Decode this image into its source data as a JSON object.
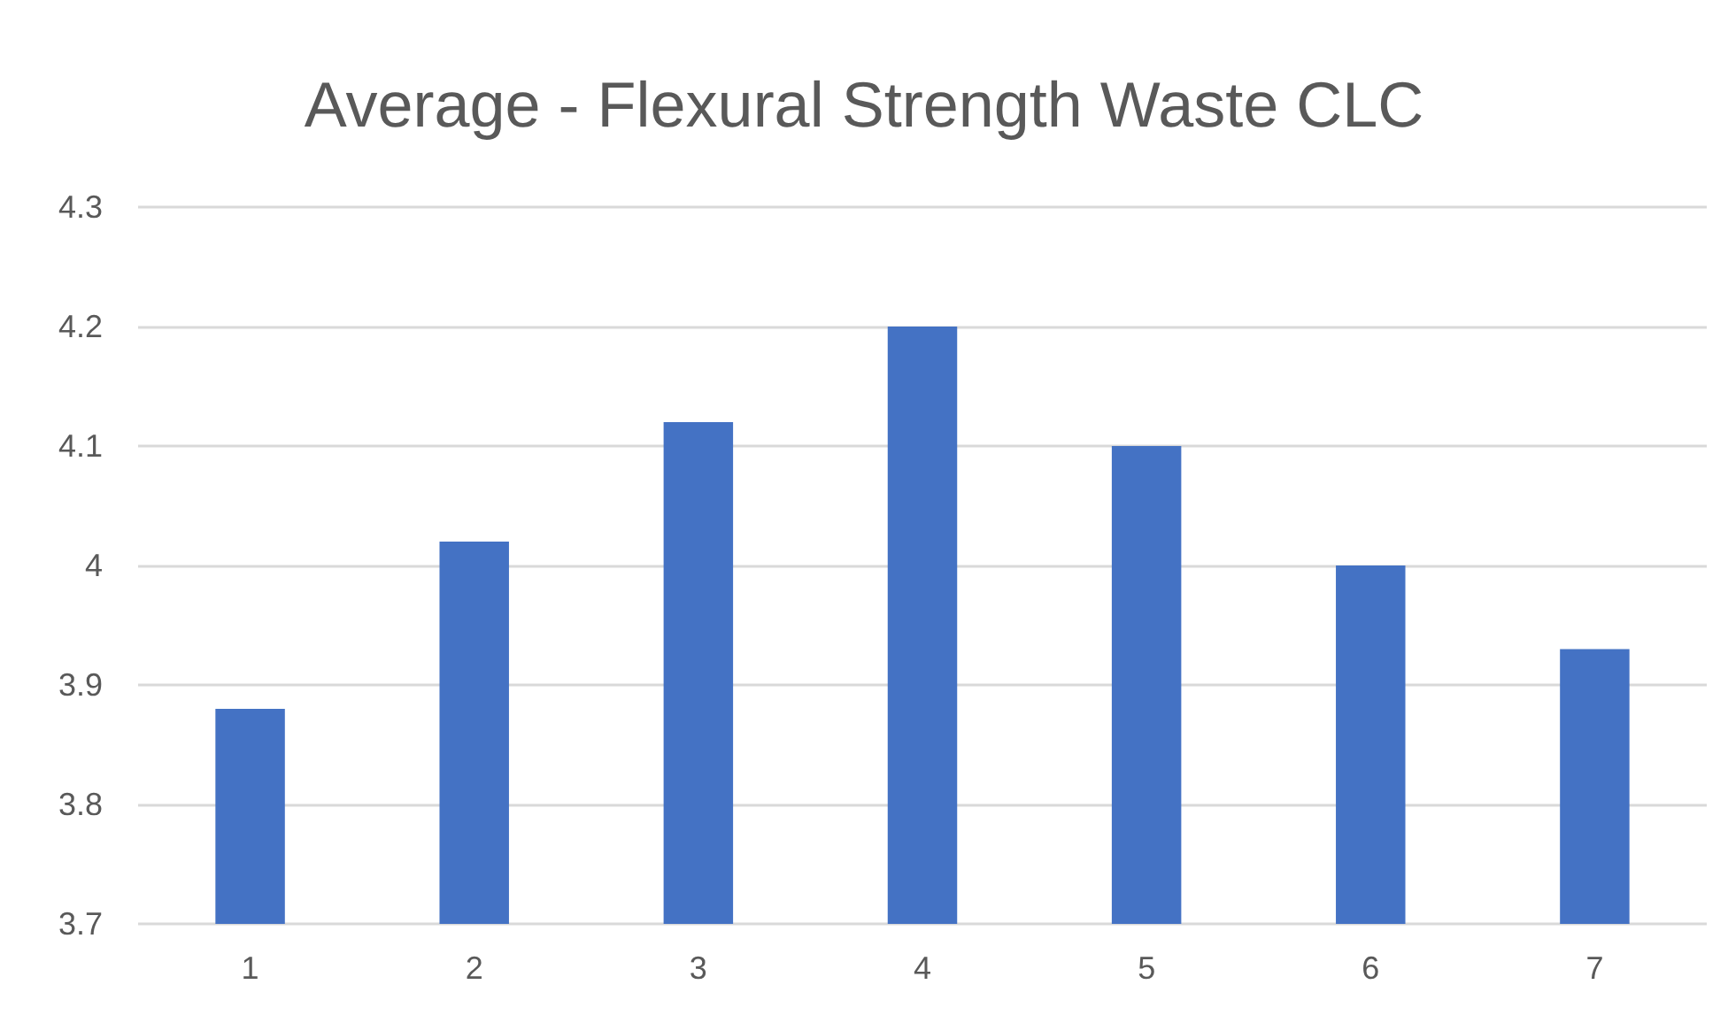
{
  "chart_data": {
    "type": "bar",
    "title": "Average - Flexural Strength Waste CLC",
    "categories": [
      "1",
      "2",
      "3",
      "4",
      "5",
      "6",
      "7"
    ],
    "values": [
      3.88,
      4.02,
      4.12,
      4.2,
      4.1,
      4.0,
      3.93
    ],
    "color": "#4472c4",
    "ylim": [
      3.7,
      4.3
    ],
    "yticks": [
      3.7,
      3.8,
      3.9,
      4,
      4.1,
      4.2,
      4.3
    ],
    "grid": "y"
  }
}
